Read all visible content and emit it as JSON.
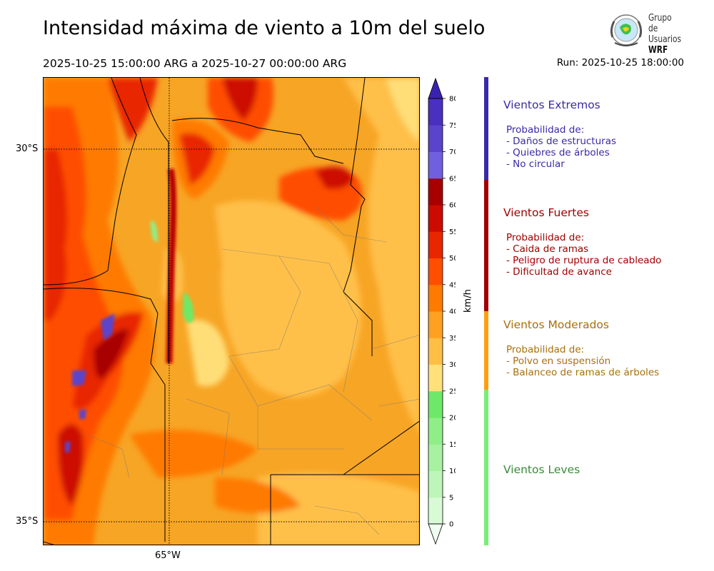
{
  "header": {
    "title": "Intensidad máxima de viento a 10m del suelo",
    "period": "2025-10-25 15:00:00 ARG  a  2025-10-27 00:00:00 ARG",
    "run": "Run: 2025-10-25 18:00:00"
  },
  "logo": {
    "line1": "Grupo de",
    "line2": "Usuarios",
    "line3": "WRF"
  },
  "axes": {
    "lat_labels": [
      "30°S",
      "35°S"
    ],
    "lon_labels": [
      "65°W"
    ]
  },
  "colorbar": {
    "unit": "km/h",
    "ticks": [
      "0",
      "5",
      "10",
      "15",
      "20",
      "25",
      "30",
      "35",
      "40",
      "45",
      "50",
      "55",
      "60",
      "65",
      "70",
      "75",
      "80"
    ],
    "colors": [
      "#f0fff0",
      "#d8fbd6",
      "#bdf6b8",
      "#a6f2a0",
      "#8fee88",
      "#6ee868",
      "#ffe07a",
      "#ffbf45",
      "#ffa020",
      "#ff7a00",
      "#ff4e00",
      "#e82600",
      "#cc0a00",
      "#a80000",
      "#7060e0",
      "#5a44cc",
      "#4a30bf"
    ],
    "top_color": "#3a22b0"
  },
  "categories": [
    {
      "name": "Vientos Extremos",
      "color": "#3a2aa8",
      "bar_color": "#3a2aa8",
      "intro": "Probabilidad de:",
      "items": [
        "- Daños de estructuras",
        "- Quiebres de árboles",
        "- No circular"
      ]
    },
    {
      "name": "Vientos Fuertes",
      "color": "#a00000",
      "bar_color": "#a00000",
      "intro": "Probabilidad de:",
      "items": [
        "- Caida de ramas",
        "- Peligro de ruptura de cableado",
        "- Dificultad de avance"
      ]
    },
    {
      "name": "Vientos Moderados",
      "color": "#a8700a",
      "bar_color": "#ff9f10",
      "intro": "Probabilidad de:",
      "items": [
        "- Polvo en suspensión",
        "- Balanceo de ramas de árboles"
      ]
    },
    {
      "name": "Vientos Leves",
      "color": "#3a8a3a",
      "bar_color": "#77ee77",
      "intro": "",
      "items": []
    }
  ]
}
